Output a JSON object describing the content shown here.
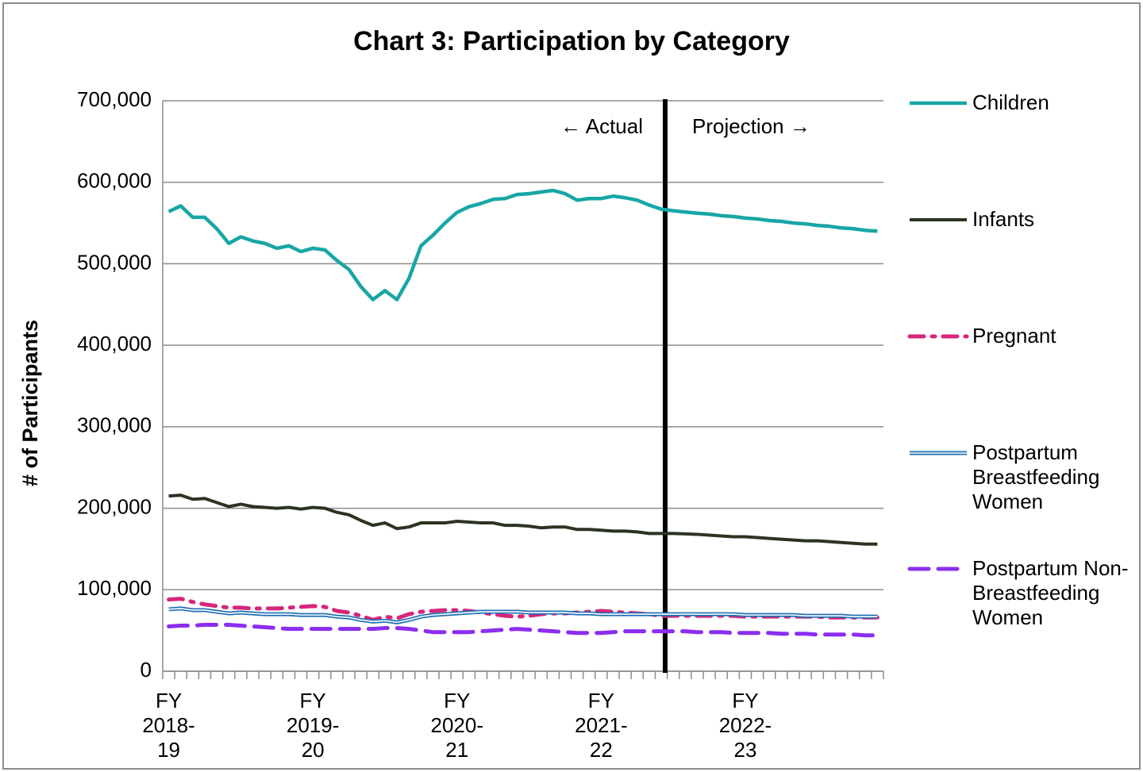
{
  "chart_data": {
    "type": "line",
    "title": "Chart 3: Participation by Category",
    "y_label": "# of Participants",
    "annotations": [
      "← Actual",
      "Projection →"
    ],
    "categories": [
      "FY 2018-19",
      null,
      null,
      null,
      null,
      null,
      null,
      null,
      null,
      null,
      null,
      null,
      "FY 2019-20",
      null,
      null,
      null,
      null,
      null,
      null,
      null,
      null,
      null,
      null,
      null,
      "FY 2020-21",
      null,
      null,
      null,
      null,
      null,
      null,
      null,
      null,
      null,
      null,
      null,
      "FY 2021-22",
      null,
      null,
      null,
      null,
      null,
      null,
      null,
      null,
      null,
      null,
      null,
      "FY 2022-23",
      null,
      null,
      null,
      null,
      null,
      null,
      null,
      null,
      null,
      null,
      null
    ],
    "series": [
      {
        "name": "Children",
        "color": "#17a6a5",
        "values": [
          564000,
          571000,
          557000,
          557000,
          543000,
          525000,
          533000,
          528000,
          525000,
          519000,
          522000,
          515000,
          519000,
          517000,
          504000,
          493000,
          472000,
          456000,
          467000,
          456000,
          482000,
          522000,
          535000,
          550000,
          563000,
          570000,
          574000,
          579000,
          580000,
          585000,
          586000,
          588000,
          590000,
          586000,
          578000,
          580000,
          580000,
          583000,
          581000,
          578000,
          572000,
          567000,
          565000,
          563500,
          562000,
          561000,
          559000,
          558000,
          556000,
          555000,
          553000,
          552000,
          550000,
          549000,
          547000,
          546000,
          544000,
          543000,
          541000,
          540000
        ]
      },
      {
        "name": "Infants",
        "color": "#2b3420",
        "values": [
          215000,
          216000,
          211000,
          212000,
          207000,
          202000,
          205000,
          202000,
          201000,
          200000,
          201000,
          199000,
          201000,
          200000,
          195000,
          192000,
          185000,
          179000,
          182000,
          175000,
          177000,
          182000,
          182000,
          182000,
          184000,
          183000,
          182000,
          182000,
          179000,
          179000,
          178000,
          176000,
          177000,
          177000,
          174000,
          174000,
          173000,
          172000,
          172000,
          171000,
          169000,
          169000,
          169000,
          168500,
          168000,
          167000,
          166000,
          165000,
          165000,
          164000,
          163000,
          162000,
          161000,
          160000,
          160000,
          159000,
          158000,
          157000,
          156000,
          156000
        ]
      },
      {
        "name": "Pregnant",
        "color": "#d6267c",
        "values": [
          88000,
          89000,
          85000,
          82000,
          80000,
          78000,
          78000,
          77000,
          77000,
          77000,
          78000,
          79000,
          80000,
          79000,
          74000,
          72000,
          68000,
          63000,
          67000,
          65000,
          70000,
          73000,
          74000,
          75000,
          75000,
          74000,
          72000,
          70000,
          68000,
          67000,
          68000,
          70000,
          71000,
          71000,
          72000,
          73000,
          74000,
          73000,
          72000,
          71000,
          70000,
          68000,
          68000,
          68000,
          68000,
          68000,
          68000,
          68000,
          67000,
          67000,
          67000,
          67000,
          67000,
          67000,
          67000,
          66000,
          66000,
          66000,
          66000,
          66000
        ]
      },
      {
        "name": "Postpartum Breastfeeding Women",
        "color": "#1f6fb5",
        "values": [
          76000,
          77000,
          75000,
          75000,
          73000,
          71000,
          72000,
          71000,
          70000,
          70000,
          70000,
          69000,
          69000,
          69000,
          67000,
          66000,
          63000,
          61000,
          62000,
          60000,
          63000,
          67000,
          69000,
          70000,
          71000,
          72000,
          73000,
          73000,
          73000,
          73000,
          72000,
          72000,
          72000,
          72000,
          71000,
          71000,
          70000,
          70000,
          70000,
          70000,
          70000,
          70000,
          70000,
          70000,
          70000,
          70000,
          70000,
          70000,
          69000,
          69000,
          69000,
          69000,
          69000,
          68000,
          68000,
          68000,
          68000,
          67000,
          67000,
          67000
        ]
      },
      {
        "name": "Postpartum Non-Breastfeeding Women",
        "color": "#8b2ef0",
        "values": [
          55000,
          56000,
          56000,
          57000,
          57000,
          57000,
          56000,
          55000,
          54000,
          53000,
          52000,
          52000,
          52000,
          52000,
          52000,
          52000,
          52000,
          52000,
          53000,
          53000,
          52000,
          50000,
          48000,
          48000,
          48000,
          48000,
          49000,
          50000,
          51000,
          52000,
          51000,
          50000,
          49000,
          48000,
          47000,
          47000,
          47000,
          48000,
          49000,
          49000,
          49000,
          49000,
          49000,
          49000,
          48000,
          48000,
          48000,
          47000,
          47000,
          47000,
          47000,
          46000,
          46000,
          46000,
          45000,
          45000,
          45000,
          45000,
          44000,
          44000
        ]
      }
    ],
    "ylim": [
      0,
      700000
    ],
    "yticks": [
      0,
      {
        "value": 100000,
        "label": "100,000"
      },
      {
        "value": 200000,
        "label": "200,000"
      },
      {
        "value": 300000,
        "label": "300,000"
      },
      {
        "value": 400000,
        "label": "400,000"
      },
      {
        "value": 500000,
        "label": "500,000"
      },
      {
        "value": 600000,
        "label": "600,000"
      },
      {
        "value": 700000,
        "label": "700,000"
      }
    ],
    "grid": true,
    "legend": "right"
  }
}
